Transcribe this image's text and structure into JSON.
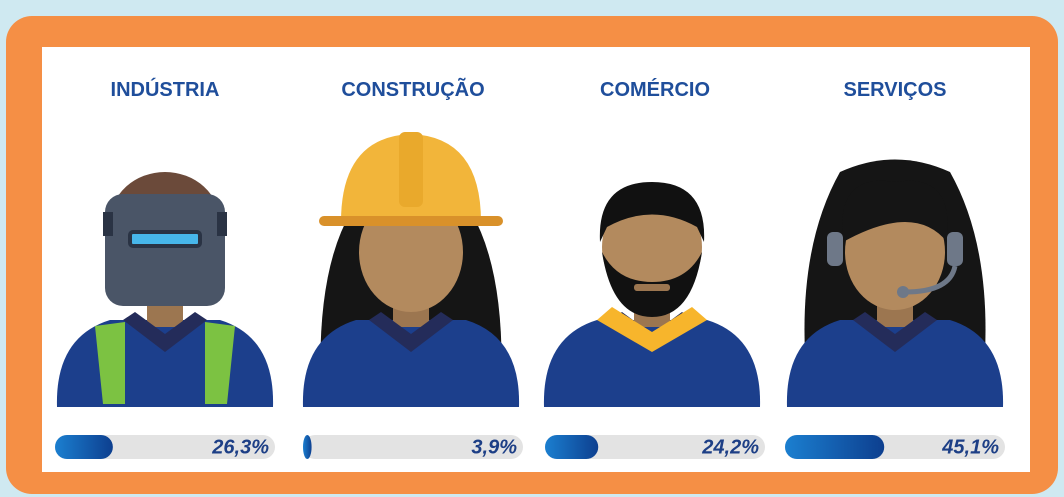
{
  "chart_data": {
    "type": "bar",
    "categories": [
      "INDÚSTRIA",
      "CONSTRUÇÃO",
      "COMÉRCIO",
      "SERVIÇOS"
    ],
    "values": [
      26.3,
      3.9,
      24.2,
      45.1
    ],
    "value_labels": [
      "26,3%",
      "3,9%",
      "24,2%",
      "45,1%"
    ],
    "xlim": [
      0,
      100
    ]
  }
}
